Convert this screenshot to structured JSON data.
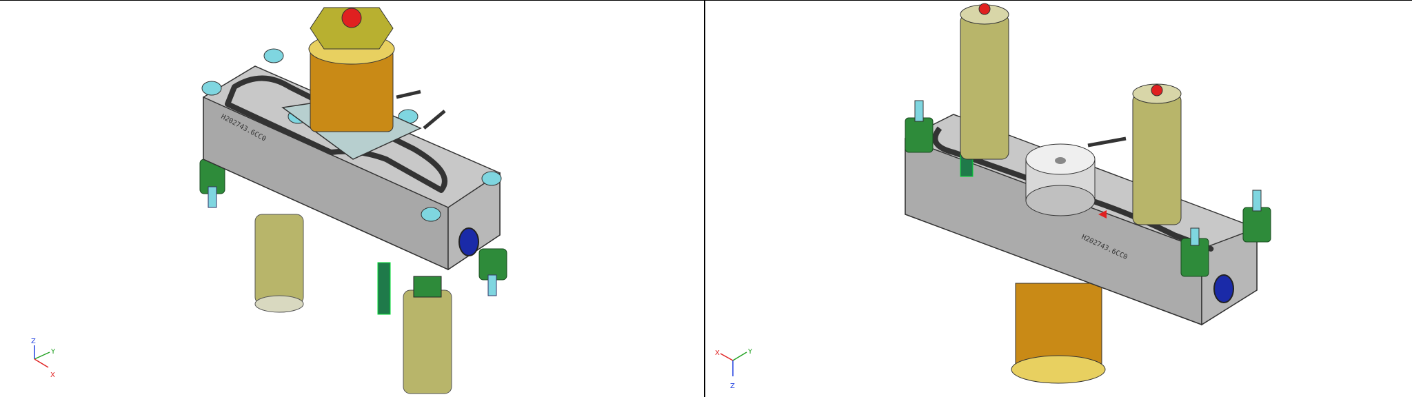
{
  "viewports": {
    "left": {
      "part_label": "H202743.6CC0",
      "triad": {
        "z": "Z",
        "y": "Y",
        "x": "X"
      }
    },
    "right": {
      "part_label": "H202743.6CC0",
      "triad": {
        "x": "X",
        "y": "Y",
        "z": "Z"
      }
    }
  },
  "colors": {
    "body_gray": "#c8c8c8",
    "body_dark": "#8a8a8a",
    "coil_gold": "#c98a16",
    "coil_olive": "#b8b56a",
    "green": "#2e8b3a",
    "cyan": "#7fd6e0",
    "red": "#e02020",
    "blue_port": "#1a2aa8",
    "axis_x": "#e02020",
    "axis_y": "#20a020",
    "axis_z": "#2040e0"
  }
}
